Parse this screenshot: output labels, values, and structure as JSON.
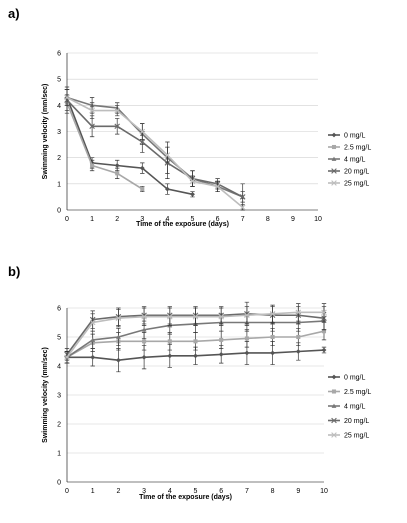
{
  "figure": {
    "panel_labels": [
      "a)",
      "b)"
    ]
  },
  "chart_data": [
    {
      "type": "line",
      "panel": "a)",
      "xlabel": "Time of the exposure (days)",
      "ylabel": "Swimming velocity (mm/sec)",
      "ylim": [
        0,
        6
      ],
      "xlim": [
        0,
        10
      ],
      "x_ticks": [
        0,
        1,
        2,
        3,
        4,
        5,
        6,
        7,
        8,
        9,
        10
      ],
      "y_ticks": [
        0,
        1,
        2,
        3,
        4,
        5,
        6
      ],
      "grid": "horizontal",
      "legend_position": "right",
      "series": [
        {
          "name": "0 mg/L",
          "color": "#555555",
          "marker": "diamond",
          "x": [
            0,
            1,
            2,
            3,
            4,
            5
          ],
          "y": [
            4.3,
            1.8,
            1.7,
            1.6,
            0.8,
            0.6
          ],
          "err": [
            0.3,
            0.2,
            0.2,
            0.2,
            0.2,
            0.1
          ]
        },
        {
          "name": "2.5 mg/L",
          "color": "#a8a8a8",
          "marker": "square",
          "x": [
            0,
            1,
            2,
            3
          ],
          "y": [
            4.1,
            1.7,
            1.4,
            0.8
          ],
          "err": [
            0.3,
            0.2,
            0.2,
            0.1
          ]
        },
        {
          "name": "4 mg/L",
          "color": "#787878",
          "marker": "triangle",
          "x": [
            0,
            1,
            2,
            3,
            4,
            5,
            6,
            7
          ],
          "y": [
            4.3,
            4.0,
            3.9,
            2.9,
            2.0,
            1.2,
            0.9,
            0.5
          ],
          "err": [
            0.3,
            0.3,
            0.2,
            0.4,
            0.6,
            0.3,
            0.2,
            0.5
          ]
        },
        {
          "name": "20 mg/L",
          "color": "#6a6a6a",
          "marker": "x",
          "x": [
            0,
            1,
            2,
            3,
            4,
            5,
            6,
            7
          ],
          "y": [
            4.2,
            3.2,
            3.2,
            2.6,
            1.8,
            1.2,
            1.0,
            0.5
          ],
          "err": [
            0.5,
            0.4,
            0.3,
            0.4,
            0.6,
            0.3,
            0.2,
            0.2
          ]
        },
        {
          "name": "25 mg/L",
          "color": "#bdbdbd",
          "marker": "x",
          "x": [
            0,
            1,
            2,
            3,
            4,
            5,
            6,
            7
          ],
          "y": [
            4.3,
            3.8,
            3.8,
            3.0,
            2.1,
            1.1,
            0.9,
            0.1
          ],
          "err": [
            0.3,
            0.3,
            0.2,
            0.3,
            0.3,
            0.2,
            0.2,
            0.1
          ]
        }
      ]
    },
    {
      "type": "line",
      "panel": "b)",
      "xlabel": "Time of the exposure (days)",
      "ylabel": "Swimming velocity (mm/sec)",
      "ylim": [
        0,
        6
      ],
      "xlim": [
        0,
        10
      ],
      "x_ticks": [
        0,
        1,
        2,
        3,
        4,
        5,
        6,
        7,
        8,
        9,
        10
      ],
      "y_ticks": [
        0,
        1,
        2,
        3,
        4,
        5,
        6
      ],
      "grid": "horizontal",
      "legend_position": "right",
      "series": [
        {
          "name": "0 mg/L",
          "color": "#555555",
          "marker": "diamond",
          "x": [
            0,
            1,
            2,
            3,
            4,
            5,
            6,
            7,
            8,
            9,
            10
          ],
          "y": [
            4.3,
            4.3,
            4.2,
            4.3,
            4.35,
            4.35,
            4.4,
            4.45,
            4.45,
            4.5,
            4.55
          ],
          "err": [
            0.2,
            0.3,
            0.4,
            0.4,
            0.4,
            0.3,
            0.3,
            0.4,
            0.4,
            0.3,
            0.1
          ]
        },
        {
          "name": "2.5 mg/L",
          "color": "#a8a8a8",
          "marker": "square",
          "x": [
            0,
            1,
            2,
            3,
            4,
            5,
            6,
            7,
            8,
            9,
            10
          ],
          "y": [
            4.3,
            4.8,
            4.85,
            4.85,
            4.85,
            4.85,
            4.9,
            4.95,
            5.0,
            5.0,
            5.2
          ],
          "err": [
            0.2,
            0.3,
            0.3,
            0.3,
            0.3,
            0.3,
            0.3,
            0.3,
            0.3,
            0.3,
            0.3
          ]
        },
        {
          "name": "4 mg/L",
          "color": "#787878",
          "marker": "triangle",
          "x": [
            0,
            1,
            2,
            3,
            4,
            5,
            6,
            7,
            8,
            9,
            10
          ],
          "y": [
            4.3,
            4.9,
            5.0,
            5.25,
            5.4,
            5.45,
            5.5,
            5.5,
            5.5,
            5.5,
            5.55
          ],
          "err": [
            0.2,
            0.3,
            0.3,
            0.3,
            0.3,
            0.3,
            0.3,
            0.3,
            0.3,
            0.3,
            0.3
          ]
        },
        {
          "name": "20 mg/L",
          "color": "#6a6a6a",
          "marker": "x",
          "x": [
            0,
            1,
            2,
            3,
            4,
            5,
            6,
            7,
            8,
            9,
            10
          ],
          "y": [
            4.4,
            5.6,
            5.7,
            5.75,
            5.75,
            5.75,
            5.75,
            5.8,
            5.75,
            5.75,
            5.65
          ],
          "err": [
            0.2,
            0.3,
            0.3,
            0.3,
            0.3,
            0.3,
            0.3,
            0.4,
            0.3,
            0.3,
            0.4
          ]
        },
        {
          "name": "25 mg/L",
          "color": "#bdbdbd",
          "marker": "x",
          "x": [
            0,
            1,
            2,
            3,
            4,
            5,
            6,
            7,
            8,
            9,
            10
          ],
          "y": [
            4.3,
            5.5,
            5.65,
            5.7,
            5.7,
            5.7,
            5.7,
            5.75,
            5.8,
            5.85,
            5.85
          ],
          "err": [
            0.2,
            0.3,
            0.3,
            0.3,
            0.3,
            0.3,
            0.3,
            0.3,
            0.3,
            0.3,
            0.3
          ]
        }
      ]
    }
  ]
}
